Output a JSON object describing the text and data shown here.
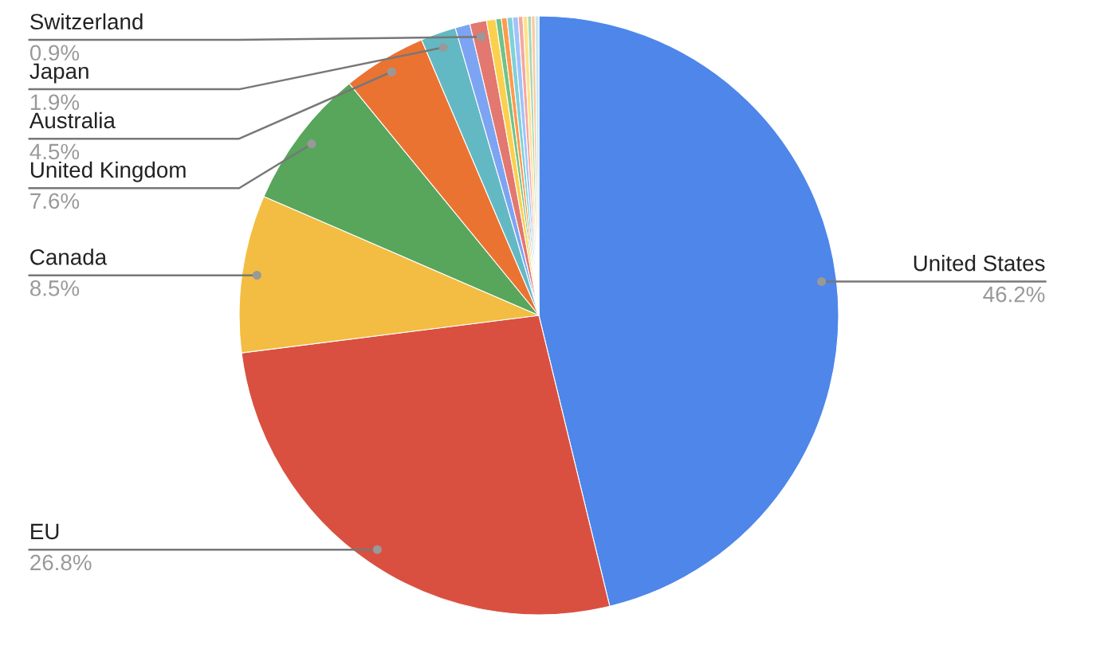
{
  "chart_data": {
    "type": "pie",
    "categories": [
      "United States",
      "EU",
      "Canada",
      "United Kingdom",
      "Australia",
      "Japan",
      null,
      "Switzerland",
      null,
      null,
      null,
      null,
      null,
      null,
      null,
      null,
      null,
      null
    ],
    "values": [
      46.2,
      26.8,
      8.5,
      7.6,
      4.5,
      1.9,
      0.8,
      0.9,
      0.5,
      0.3,
      0.3,
      0.3,
      0.3,
      0.25,
      0.25,
      0.2,
      0.2,
      0.2
    ],
    "value_labels": [
      "46.2%",
      "26.8%",
      "8.5%",
      "7.6%",
      "4.5%",
      "1.9%",
      null,
      "0.9%",
      null,
      null,
      null,
      null,
      null,
      null,
      null,
      null,
      null,
      null
    ],
    "colors": [
      "#4e86ea",
      "#d95040",
      "#f2bd42",
      "#58a55c",
      "#eb7332",
      "#63b9c3",
      "#7da4f2",
      "#e2786f",
      "#fcd04f",
      "#71c287",
      "#ff994d",
      "#7ed1d7",
      "#a1c2fa",
      "#f4a7a1",
      "#fde28c",
      "#a8d8b4",
      "#ffc8a0",
      "#c6e8eb"
    ]
  }
}
